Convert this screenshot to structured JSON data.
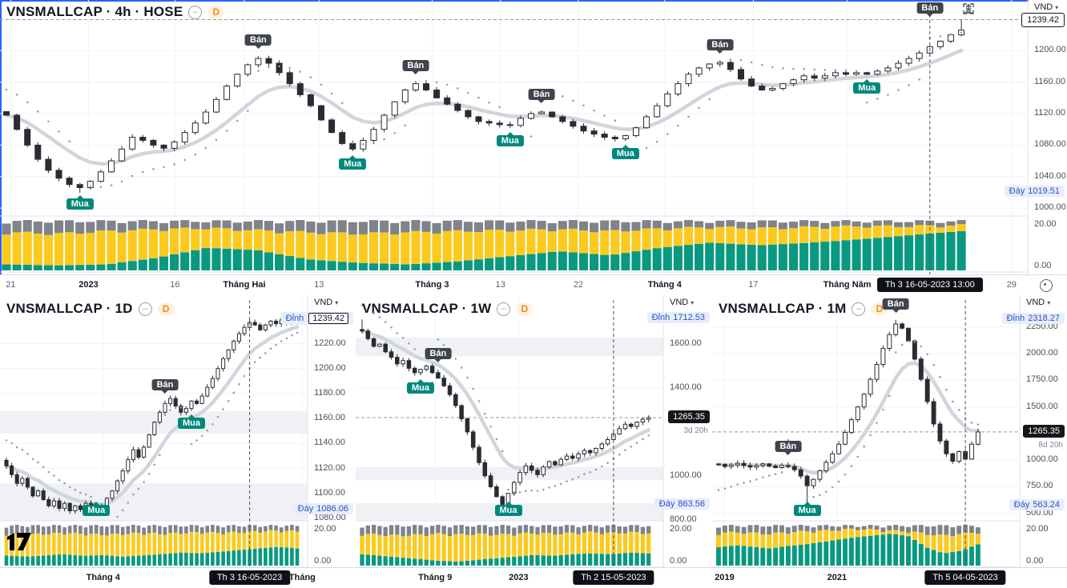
{
  "colors": {
    "accent": "#2962ff",
    "candle_down": "#2a2c33",
    "candle_up_fill": "#ffffff",
    "ma_line": "#d1d5dc",
    "sar_dots": "#9b9fa8",
    "vol_yellow": "#fcca1f",
    "vol_teal": "#089981",
    "vol_gray": "#7e838c",
    "sell_label_bg": "#40444d",
    "buy_label_bg": "#00897b",
    "blue_tag_bg": "#e7edfb",
    "blue_tag_text": "#2a53c4",
    "price_box_bg": "#15171c",
    "grid": "#f0f3fa",
    "zone": "#eceff3",
    "crosshair": "#50535e"
  },
  "toolbar": {
    "icons": [
      "download",
      "expand",
      "fullscreen"
    ]
  },
  "watermark": "TradingView",
  "charts": [
    {
      "type": "candlestick",
      "title": "VNSMALLCAP · 4h · HOSE",
      "badge": "D",
      "currency": "VND",
      "range": {
        "min": 992,
        "max": 1246
      },
      "prices": [
        1118,
        1100,
        1080,
        1062,
        1048,
        1038,
        1030,
        1026,
        1034,
        1046,
        1060,
        1075,
        1090,
        1086,
        1080,
        1076,
        1084,
        1096,
        1108,
        1122,
        1138,
        1155,
        1170,
        1182,
        1190,
        1184,
        1172,
        1158,
        1144,
        1130,
        1112,
        1096,
        1082,
        1075,
        1086,
        1100,
        1118,
        1135,
        1150,
        1158,
        1150,
        1140,
        1132,
        1124,
        1116,
        1110,
        1108,
        1106,
        1105,
        1114,
        1120,
        1122,
        1116,
        1110,
        1104,
        1098,
        1094,
        1090,
        1088,
        1092,
        1102,
        1116,
        1130,
        1145,
        1158,
        1170,
        1178,
        1183,
        1185,
        1176,
        1164,
        1155,
        1150,
        1152,
        1158,
        1163,
        1168,
        1165,
        1168,
        1172,
        1170,
        1172,
        1170,
        1174,
        1178,
        1184,
        1190,
        1197,
        1205,
        1212,
        1220,
        1226
      ],
      "overrides": {
        "7": {
          "low": 1019.51
        },
        "91": {
          "high": 1239.42
        }
      },
      "signals": [
        {
          "i": 7,
          "s": "Mua"
        },
        {
          "i": 24,
          "s": "Bán"
        },
        {
          "i": 33,
          "s": "Mua"
        },
        {
          "i": 39,
          "s": "Bán"
        },
        {
          "i": 48,
          "s": "Mua"
        },
        {
          "i": 51,
          "s": "Bán"
        },
        {
          "i": 59,
          "s": "Mua"
        },
        {
          "i": 68,
          "s": "Bán"
        },
        {
          "i": 82,
          "s": "Mua"
        },
        {
          "i": 88,
          "s": "Bán",
          "pin": true
        }
      ],
      "crosshair_i": 88,
      "current_line": 1239.42,
      "zones": [],
      "scale": {
        "ticks": [
          {
            "v": 1200,
            "t": "1200.00"
          },
          {
            "v": 1160,
            "t": "1160.00"
          },
          {
            "v": 1120,
            "t": "1120.00"
          },
          {
            "v": 1080,
            "t": "1080.00"
          },
          {
            "v": 1040,
            "t": "1040.00"
          },
          {
            "v": 1000,
            "t": "1000.00"
          }
        ],
        "dinh": null,
        "day": {
          "label": "Đáy",
          "v": 1019.51,
          "val": "1019.51"
        },
        "current": {
          "v": 1239.42,
          "val": "1239.42",
          "style": "light",
          "countdown": null
        }
      },
      "indicator": {
        "ticks": [
          "20.00",
          "0.00"
        ],
        "teal": [
          0.12,
          0.1,
          0.12,
          0.25,
          0.45,
          0.4,
          0.22,
          0.15,
          0.12,
          0.18,
          0.28,
          0.38,
          0.3,
          0.45,
          0.55,
          0.5,
          0.55,
          0.62,
          0.7,
          0.78
        ],
        "gray": [
          0.22,
          0.25,
          0.2,
          0.16,
          0.14,
          0.18,
          0.22,
          0.25,
          0.22,
          0.2,
          0.18,
          0.16,
          0.2,
          0.15,
          0.12,
          0.14,
          0.12,
          0.1,
          0.1,
          0.08
        ]
      },
      "axis": {
        "labels": [
          {
            "t": "21",
            "f": 0.01,
            "b": false
          },
          {
            "t": "2023",
            "f": 0.083,
            "b": true
          },
          {
            "t": "16",
            "f": 0.164,
            "b": false
          },
          {
            "t": "Tháng Hai",
            "f": 0.229,
            "b": true
          },
          {
            "t": "13",
            "f": 0.299,
            "b": false
          },
          {
            "t": "Tháng 3",
            "f": 0.405,
            "b": true
          },
          {
            "t": "13",
            "f": 0.469,
            "b": false
          },
          {
            "t": "22",
            "f": 0.542,
            "b": false
          },
          {
            "t": "Tháng 4",
            "f": 0.623,
            "b": true
          },
          {
            "t": "17",
            "f": 0.706,
            "b": false
          },
          {
            "t": "Tháng Năm",
            "f": 0.794,
            "b": true
          },
          {
            "t": "29",
            "f": 0.948,
            "b": false
          }
        ],
        "tooltip": "Th 3 16-05-2023  13:00"
      }
    },
    {
      "type": "candlestick",
      "title": "VNSMALLCAP · 1D",
      "badge": "D",
      "currency": "VND",
      "range": {
        "min": 1078,
        "max": 1246
      },
      "prices": [
        1122,
        1115,
        1108,
        1112,
        1105,
        1098,
        1102,
        1095,
        1090,
        1094,
        1088,
        1092,
        1086,
        1090,
        1087,
        1092,
        1089,
        1086,
        1090,
        1096,
        1102,
        1110,
        1118,
        1127,
        1135,
        1129,
        1137,
        1147,
        1157,
        1165,
        1172,
        1176,
        1170,
        1165,
        1168,
        1174,
        1172,
        1178,
        1185,
        1192,
        1200,
        1208,
        1215,
        1222,
        1228,
        1233,
        1237,
        1235,
        1231,
        1235,
        1238,
        1236,
        1239,
        1237,
        1240,
        1239
      ],
      "overrides": {
        "17": {
          "low": 1086.06
        },
        "54": {
          "high": 1239.42
        }
      },
      "signals": [
        {
          "i": 17,
          "s": "Mua"
        },
        {
          "i": 30,
          "s": "Bán"
        },
        {
          "i": 35,
          "s": "Mua"
        }
      ],
      "crosshair_i": 46,
      "current_line": null,
      "zones": [
        [
          1148,
          1166
        ],
        [
          1078,
          1108
        ]
      ],
      "scale": {
        "ticks": [
          {
            "v": 1220,
            "t": "1220.00"
          },
          {
            "v": 1200,
            "t": "1200.00"
          },
          {
            "v": 1180,
            "t": "1180.00"
          },
          {
            "v": 1160,
            "t": "1160.00"
          },
          {
            "v": 1140,
            "t": "1140.00"
          },
          {
            "v": 1120,
            "t": "1120.00"
          },
          {
            "v": 1100,
            "t": "1100.00"
          },
          {
            "v": 1080,
            "t": "1080.00"
          }
        ],
        "dinh": {
          "label": "Đỉnh",
          "v": 1239.42,
          "val": "1239.42",
          "boxed": true
        },
        "day": {
          "label": "Đáy",
          "v": 1086.06,
          "val": "1086.06"
        },
        "current": null
      },
      "indicator": {
        "ticks": [
          "20.00",
          "0.00"
        ],
        "teal": [
          0.25,
          0.22,
          0.25,
          0.28,
          0.24,
          0.26,
          0.22,
          0.25,
          0.28,
          0.32,
          0.3,
          0.34,
          0.38,
          0.42,
          0.46,
          0.42
        ],
        "gray": [
          0.2,
          0.22,
          0.2,
          0.18,
          0.2,
          0.22,
          0.2,
          0.18,
          0.2,
          0.18,
          0.16,
          0.18,
          0.16,
          0.14,
          0.12,
          0.14
        ]
      },
      "axis": {
        "labels": [
          {
            "t": "Tháng 4",
            "f": 0.29,
            "b": true
          },
          {
            "t": "Tháng",
            "f": 0.85,
            "b": true
          }
        ],
        "tooltip": "Th 3 16-05-2023"
      }
    },
    {
      "type": "candlestick",
      "title": "VNSMALLCAP · 1W",
      "badge": "D",
      "currency": "VND",
      "range": {
        "min": 795,
        "max": 1750
      },
      "prices": [
        1660,
        1625,
        1590,
        1600,
        1565,
        1540,
        1510,
        1525,
        1490,
        1470,
        1485,
        1500,
        1470,
        1445,
        1410,
        1370,
        1320,
        1260,
        1200,
        1130,
        1060,
        1000,
        950,
        905,
        870,
        920,
        970,
        1015,
        1045,
        1025,
        1005,
        1040,
        1065,
        1050,
        1075,
        1090,
        1080,
        1100,
        1115,
        1105,
        1125,
        1145,
        1165,
        1190,
        1215,
        1235,
        1225,
        1245,
        1258,
        1265
      ],
      "overrides": {
        "0": {
          "high": 1712.53
        },
        "24": {
          "low": 863.56
        }
      },
      "signals": [
        {
          "i": 10,
          "s": "Mua"
        },
        {
          "i": 13,
          "s": "Bán"
        },
        {
          "i": 25,
          "s": "Mua"
        }
      ],
      "crosshair_i": 43,
      "current_line": 1265.35,
      "zones": [
        [
          1545,
          1630
        ],
        [
          980,
          1040
        ],
        [
          795,
          875
        ]
      ],
      "scale": {
        "ticks": [
          {
            "v": 1600,
            "t": "1600.00"
          },
          {
            "v": 1400,
            "t": "1400.00"
          },
          {
            "v": 1000,
            "t": "1000.00"
          },
          {
            "v": 800,
            "t": "800.00"
          }
        ],
        "dinh": {
          "label": "Đỉnh",
          "v": 1712.53,
          "val": "1712.53",
          "boxed": false
        },
        "day": {
          "label": "Đáy",
          "v": 863.56,
          "val": "863.56"
        },
        "current": {
          "v": 1265.35,
          "val": "1265.35",
          "style": "dark",
          "countdown": "3d 20h"
        }
      },
      "indicator": {
        "ticks": [
          "20.00",
          "0.00"
        ],
        "teal": [
          0.28,
          0.24,
          0.2,
          0.16,
          0.12,
          0.1,
          0.14,
          0.18,
          0.22,
          0.26,
          0.24,
          0.28,
          0.3,
          0.28,
          0.32,
          0.3
        ],
        "gray": [
          0.2,
          0.22,
          0.24,
          0.22,
          0.2,
          0.22,
          0.2,
          0.22,
          0.2,
          0.18,
          0.2,
          0.18,
          0.16,
          0.18,
          0.16,
          0.18
        ]
      },
      "axis": {
        "labels": [
          {
            "t": "Tháng 9",
            "f": 0.223,
            "b": true
          },
          {
            "t": "2023",
            "f": 0.457,
            "b": true
          }
        ],
        "tooltip": "Th 2 15-05-2023"
      }
    },
    {
      "type": "candlestick",
      "title": "VNSMALLCAP · 1M",
      "badge": "D",
      "currency": "VND",
      "range": {
        "min": 430,
        "max": 2400
      },
      "prices": [
        960,
        940,
        955,
        970,
        950,
        935,
        950,
        965,
        945,
        930,
        950,
        940,
        910,
        850,
        760,
        820,
        900,
        980,
        1060,
        1150,
        1260,
        1380,
        1500,
        1620,
        1760,
        1900,
        2050,
        2180,
        2280,
        2240,
        2120,
        1950,
        1760,
        1550,
        1340,
        1180,
        1060,
        990,
        1080,
        1010,
        1150,
        1265
      ],
      "overrides": {
        "14": {
          "low": 563.24
        },
        "28": {
          "high": 2318.27
        }
      },
      "signals": [
        {
          "i": 11,
          "s": "Bán"
        },
        {
          "i": 14,
          "s": "Mua"
        },
        {
          "i": 28,
          "s": "Bán"
        }
      ],
      "crosshair_i": 39,
      "current_line": 1265.35,
      "zones": [],
      "scale": {
        "ticks": [
          {
            "v": 2250,
            "t": "2250.00"
          },
          {
            "v": 2000,
            "t": "2000.00"
          },
          {
            "v": 1750,
            "t": "1750.00"
          },
          {
            "v": 1500,
            "t": "1500.00"
          },
          {
            "v": 1000,
            "t": "1000.00"
          },
          {
            "v": 750,
            "t": "750.00"
          },
          {
            "v": 500,
            "t": "500.00"
          }
        ],
        "dinh": {
          "label": "Đỉnh",
          "v": 2318.27,
          "val": "2318.27",
          "boxed": false
        },
        "day": {
          "label": "Đáy",
          "v": 563.24,
          "val": "563.24"
        },
        "current": {
          "v": 1265.35,
          "val": "1265.35",
          "style": "dark",
          "countdown": "8d 20h"
        }
      },
      "indicator": {
        "ticks": [
          "20.00",
          "0.00"
        ],
        "teal": [
          0.45,
          0.5,
          0.46,
          0.42,
          0.48,
          0.52,
          0.58,
          0.64,
          0.7,
          0.74,
          0.78,
          0.72,
          0.45,
          0.3,
          0.36,
          0.52
        ],
        "gray": [
          0.18,
          0.16,
          0.18,
          0.2,
          0.16,
          0.14,
          0.12,
          0.1,
          0.08,
          0.1,
          0.12,
          0.14,
          0.2,
          0.24,
          0.2,
          0.16
        ]
      },
      "axis": {
        "labels": [
          {
            "t": "2019",
            "f": 0.035,
            "b": true
          },
          {
            "t": "2021",
            "f": 0.352,
            "b": true
          }
        ],
        "tooltip": "Th 5 04-05-2023"
      }
    }
  ]
}
